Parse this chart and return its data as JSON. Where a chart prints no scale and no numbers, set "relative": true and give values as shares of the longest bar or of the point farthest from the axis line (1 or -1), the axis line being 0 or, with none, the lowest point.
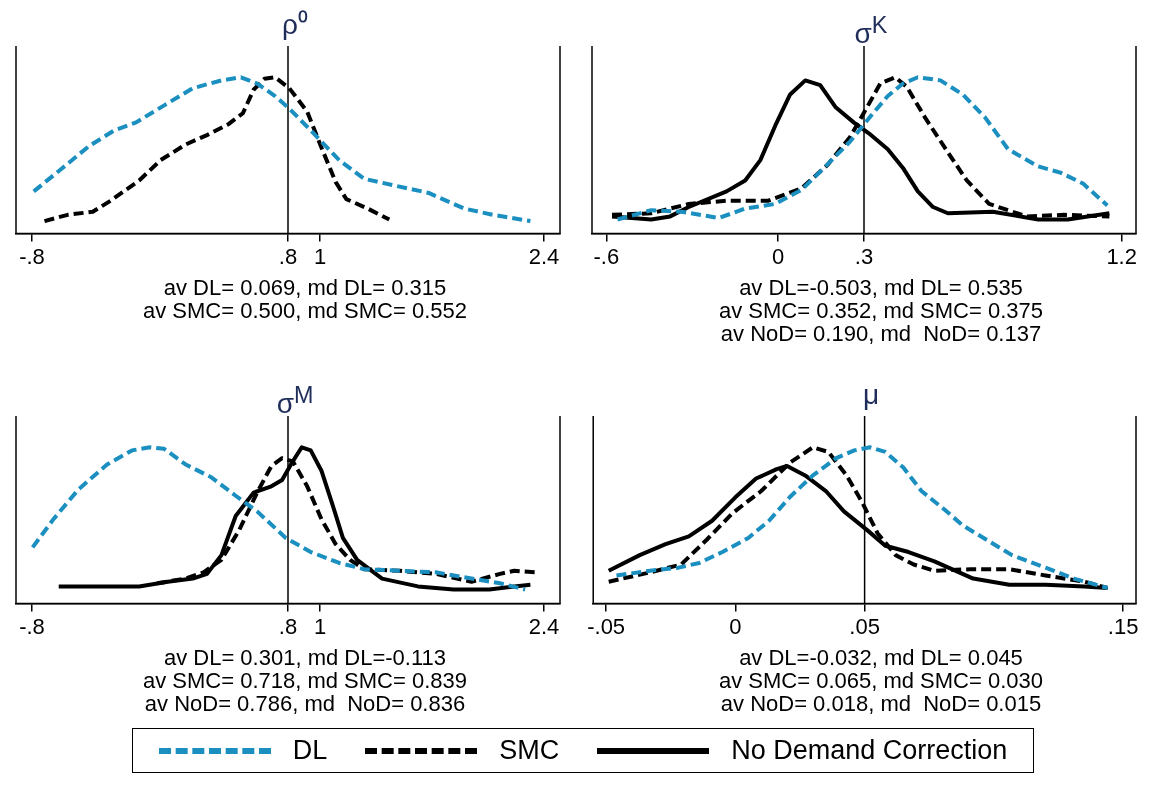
{
  "chart_data": [
    {
      "type": "line",
      "title": "ρ⁰",
      "relative": true,
      "xlim": [
        -0.9,
        2.5
      ],
      "xticks": [
        {
          "value": -0.8,
          "label": "-.8"
        },
        {
          "value": 0.8,
          "label": ".8"
        },
        1,
        2.4
      ],
      "grid": false,
      "legend": false,
      "ref_lines": [
        {
          "axis": "x",
          "value": 0.8,
          "color": "#000000"
        }
      ],
      "annotations": [
        "av DL= 0.069, md DL= 0.315",
        "av SMC= 0.500, md SMC= 0.552"
      ],
      "series": [
        {
          "color": "#1a8fc0",
          "line_style": "dashed",
          "x": [
            -0.789,
            -0.621,
            -0.443,
            -0.286,
            -0.152,
            0.026,
            0.205,
            0.384,
            0.506,
            0.607,
            0.719,
            0.808,
            0.942,
            1.12,
            1.277,
            1.455,
            1.679,
            1.902,
            2.081,
            2.315
          ],
          "values": [
            0.27,
            0.41,
            0.56,
            0.66,
            0.71,
            0.82,
            0.93,
            0.98,
            1.0,
            0.96,
            0.88,
            0.8,
            0.66,
            0.47,
            0.35,
            0.31,
            0.26,
            0.16,
            0.12,
            0.08
          ]
        },
        {
          "color": "#000000",
          "line_style": "dashed",
          "x": [
            -0.722,
            -0.577,
            -0.42,
            -0.309,
            -0.13,
            0.004,
            0.16,
            0.294,
            0.428,
            0.518,
            0.585,
            0.652,
            0.719,
            0.808,
            0.92,
            1.009,
            1.098,
            1.165,
            1.299,
            1.433
          ],
          "values": [
            0.08,
            0.12,
            0.14,
            0.21,
            0.34,
            0.47,
            0.57,
            0.63,
            0.7,
            0.77,
            0.92,
            0.99,
            1.0,
            0.93,
            0.78,
            0.55,
            0.33,
            0.22,
            0.16,
            0.09
          ]
        }
      ]
    },
    {
      "type": "line",
      "title": "σ$^{K}$",
      "relative": true,
      "xlim": [
        -0.65,
        1.25
      ],
      "xticks": [
        {
          "value": -0.6,
          "label": "-.6"
        },
        0,
        {
          "value": 0.3,
          "label": ".3"
        },
        1.2
      ],
      "grid": false,
      "legend": false,
      "ref_lines": [
        {
          "axis": "x",
          "value": 0.3,
          "color": "#000000"
        }
      ],
      "annotations": [
        "av DL=-0.503, md DL= 0.535",
        "av SMC= 0.352, md SMC= 0.375",
        "av NoD= 0.190, md  NoD= 0.137"
      ],
      "series": [
        {
          "color": "#1a8fc0",
          "line_style": "dashed",
          "x": [
            -0.561,
            -0.443,
            -0.338,
            -0.207,
            -0.115,
            -0.01,
            0.082,
            0.16,
            0.252,
            0.318,
            0.383,
            0.436,
            0.488,
            0.567,
            0.645,
            0.724,
            0.803,
            0.908,
            0.986,
            1.065,
            1.15
          ],
          "values": [
            0.09,
            0.15,
            0.14,
            0.1,
            0.16,
            0.19,
            0.28,
            0.42,
            0.59,
            0.74,
            0.88,
            0.96,
            1.0,
            0.98,
            0.89,
            0.74,
            0.54,
            0.43,
            0.39,
            0.32,
            0.18
          ]
        },
        {
          "color": "#000000",
          "line_style": "dashed",
          "x": [
            -0.58,
            -0.443,
            -0.312,
            -0.18,
            -0.036,
            0.082,
            0.173,
            0.252,
            0.305,
            0.357,
            0.409,
            0.449,
            0.514,
            0.593,
            0.659,
            0.737,
            0.868,
            0.999,
            1.157
          ],
          "values": [
            0.12,
            0.13,
            0.19,
            0.21,
            0.21,
            0.29,
            0.44,
            0.62,
            0.79,
            0.96,
            1.0,
            0.94,
            0.74,
            0.52,
            0.34,
            0.19,
            0.11,
            0.12,
            0.11
          ]
        },
        {
          "color": "#000000",
          "line_style": "solid",
          "x": [
            -0.58,
            -0.443,
            -0.377,
            -0.312,
            -0.18,
            -0.115,
            -0.062,
            -0.01,
            0.042,
            0.095,
            0.147,
            0.2,
            0.265,
            0.318,
            0.383,
            0.436,
            0.488,
            0.541,
            0.593,
            0.75,
            0.908,
            1.012,
            1.157
          ],
          "values": [
            0.11,
            0.09,
            0.11,
            0.17,
            0.27,
            0.34,
            0.47,
            0.69,
            0.89,
            0.98,
            0.95,
            0.81,
            0.71,
            0.64,
            0.54,
            0.42,
            0.27,
            0.17,
            0.13,
            0.14,
            0.09,
            0.09,
            0.13
          ]
        }
      ]
    },
    {
      "type": "line",
      "title": "σ$^{M}$",
      "relative": true,
      "xlim": [
        -0.9,
        2.5
      ],
      "xticks": [
        {
          "value": -0.8,
          "label": "-.8"
        },
        {
          "value": 0.8,
          "label": ".8"
        },
        1,
        2.4
      ],
      "grid": false,
      "legend": false,
      "ref_lines": [
        {
          "axis": "x",
          "value": 0.8,
          "color": "#000000"
        }
      ],
      "annotations": [
        "av DL= 0.301, md DL=-0.113",
        "av SMC= 0.718, md SMC= 0.839",
        "av NoD= 0.786, md  NoD= 0.836"
      ],
      "series": [
        {
          "color": "#1a8fc0",
          "line_style": "dashed",
          "x": [
            -0.796,
            -0.666,
            -0.51,
            -0.331,
            -0.175,
            -0.063,
            0.026,
            0.16,
            0.317,
            0.473,
            0.607,
            0.786,
            0.942,
            1.12,
            1.277,
            1.5,
            1.723,
            1.947,
            2.125,
            2.282
          ],
          "values": [
            0.36,
            0.54,
            0.73,
            0.89,
            0.98,
            1.0,
            0.99,
            0.89,
            0.81,
            0.69,
            0.59,
            0.42,
            0.33,
            0.26,
            0.22,
            0.21,
            0.2,
            0.16,
            0.13,
            0.09
          ]
        },
        {
          "color": "#000000",
          "line_style": "dashed",
          "x": [
            -0.018,
            0.16,
            0.272,
            0.384,
            0.495,
            0.607,
            0.696,
            0.763,
            0.83,
            0.92,
            1.009,
            1.098,
            1.188,
            1.277,
            1.5,
            1.723,
            1.947,
            2.125,
            2.215,
            2.349
          ],
          "values": [
            0.13,
            0.16,
            0.2,
            0.28,
            0.47,
            0.71,
            0.88,
            0.93,
            0.91,
            0.75,
            0.54,
            0.38,
            0.28,
            0.22,
            0.21,
            0.19,
            0.14,
            0.19,
            0.21,
            0.2
          ]
        },
        {
          "color": "#000000",
          "line_style": "solid",
          "x": [
            -0.633,
            -0.42,
            -0.286,
            -0.13,
            0.049,
            0.205,
            0.294,
            0.384,
            0.473,
            0.585,
            0.696,
            0.763,
            0.83,
            0.886,
            0.942,
            1.009,
            1.076,
            1.143,
            1.232,
            1.388,
            1.612,
            1.835,
            2.058,
            2.215,
            2.315
          ],
          "values": [
            0.11,
            0.11,
            0.11,
            0.11,
            0.14,
            0.16,
            0.19,
            0.31,
            0.56,
            0.71,
            0.75,
            0.79,
            0.91,
            1.0,
            0.98,
            0.85,
            0.64,
            0.42,
            0.28,
            0.16,
            0.11,
            0.09,
            0.09,
            0.11,
            0.12
          ]
        }
      ]
    },
    {
      "type": "line",
      "title": "μ",
      "relative": true,
      "xlim": [
        -0.055,
        0.155
      ],
      "xticks": [
        {
          "value": -0.05,
          "label": "-.05"
        },
        0,
        {
          "value": 0.05,
          "label": ".05"
        },
        {
          "value": 0.15,
          "label": ".15"
        }
      ],
      "grid": false,
      "legend": "bottom",
      "ref_lines": [
        {
          "axis": "x",
          "value": 0.05,
          "color": "#000000"
        }
      ],
      "annotations": [
        "av DL=-0.032, md DL= 0.045",
        "av SMC= 0.065, md SMC= 0.030",
        "av NoD= 0.018, md  NoD= 0.015"
      ],
      "series": [
        {
          "name": "DL",
          "color": "#1a8fc0",
          "line_style": "dashed",
          "x": [
            -0.046,
            -0.033,
            -0.022,
            -0.014,
            -0.005,
            0.005,
            0.013,
            0.021,
            0.03,
            0.039,
            0.046,
            0.052,
            0.058,
            0.065,
            0.072,
            0.081,
            0.088,
            0.097,
            0.107,
            0.12,
            0.131,
            0.144
          ],
          "values": [
            0.18,
            0.21,
            0.23,
            0.26,
            0.33,
            0.42,
            0.53,
            0.68,
            0.82,
            0.93,
            0.98,
            1.0,
            0.97,
            0.87,
            0.72,
            0.6,
            0.5,
            0.41,
            0.31,
            0.23,
            0.16,
            0.1
          ]
        },
        {
          "name": "SMC",
          "color": "#000000",
          "line_style": "dashed",
          "x": [
            -0.049,
            -0.033,
            -0.021,
            -0.011,
            -0.001,
            0.01,
            0.021,
            0.03,
            0.036,
            0.043,
            0.049,
            0.055,
            0.062,
            0.069,
            0.077,
            0.091,
            0.106,
            0.12,
            0.135,
            0.144
          ],
          "values": [
            0.14,
            0.2,
            0.25,
            0.41,
            0.58,
            0.72,
            0.9,
            1.0,
            0.97,
            0.82,
            0.65,
            0.45,
            0.31,
            0.25,
            0.21,
            0.22,
            0.22,
            0.18,
            0.14,
            0.1
          ]
        },
        {
          "name": "No Demand Correction",
          "color": "#000000",
          "line_style": "solid",
          "x": [
            -0.049,
            -0.037,
            -0.027,
            -0.018,
            -0.009,
            0.0,
            0.008,
            0.016,
            0.02,
            0.027,
            0.035,
            0.042,
            0.051,
            0.058,
            0.067,
            0.077,
            0.092,
            0.106,
            0.12,
            0.135,
            0.144
          ],
          "values": [
            0.21,
            0.31,
            0.38,
            0.43,
            0.53,
            0.68,
            0.8,
            0.86,
            0.88,
            0.82,
            0.72,
            0.59,
            0.47,
            0.37,
            0.33,
            0.27,
            0.16,
            0.12,
            0.12,
            0.11,
            0.1
          ]
        }
      ]
    }
  ]
}
